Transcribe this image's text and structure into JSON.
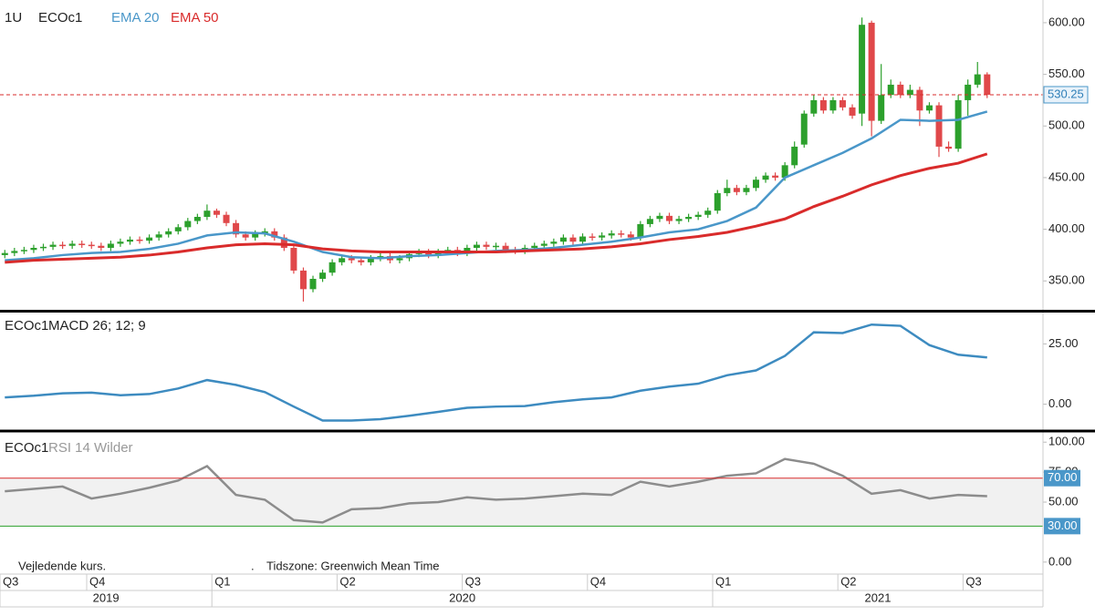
{
  "chart_data": [
    {
      "type": "candlestick",
      "interval": "1U",
      "symbol": "ECOc1",
      "up_color": "#2ca02c",
      "down_color": "#e0484a",
      "open": [
        375,
        377,
        379,
        380,
        382,
        383,
        385,
        384,
        386,
        385,
        384,
        382,
        386,
        388,
        390,
        389,
        392,
        395,
        398,
        402,
        408,
        412,
        418,
        414,
        406,
        395,
        392,
        396,
        398,
        392,
        382,
        360,
        342,
        352,
        358,
        368,
        372,
        370,
        368,
        372,
        374,
        370,
        372,
        376,
        378,
        375,
        378,
        380,
        377,
        382,
        385,
        383,
        384,
        380,
        379,
        382,
        384,
        386,
        388,
        392,
        388,
        393,
        392,
        394,
        396,
        395,
        392,
        405,
        410,
        413,
        408,
        410,
        412,
        414,
        418,
        435,
        440,
        436,
        440,
        448,
        452,
        450,
        462,
        482,
        512,
        525,
        515,
        525,
        518,
        512,
        600,
        505,
        530,
        540,
        530,
        535,
        515,
        520,
        480,
        478,
        525,
        540,
        550
      ],
      "high": [
        380,
        382,
        383,
        385,
        386,
        388,
        388,
        389,
        389,
        388,
        387,
        389,
        391,
        393,
        393,
        395,
        398,
        401,
        405,
        411,
        415,
        424,
        420,
        417,
        409,
        398,
        399,
        401,
        401,
        395,
        385,
        363,
        355,
        361,
        371,
        375,
        375,
        373,
        375,
        377,
        377,
        375,
        379,
        381,
        381,
        381,
        383,
        383,
        385,
        388,
        388,
        387,
        387,
        383,
        385,
        387,
        389,
        391,
        395,
        395,
        396,
        396,
        397,
        399,
        399,
        398,
        408,
        413,
        416,
        416,
        413,
        415,
        417,
        421,
        438,
        448,
        443,
        443,
        451,
        455,
        455,
        465,
        485,
        515,
        530,
        528,
        528,
        528,
        521,
        605,
        602,
        560,
        545,
        543,
        540,
        538,
        523,
        523,
        485,
        530,
        545,
        562,
        552
      ],
      "low": [
        372,
        374,
        376,
        377,
        379,
        380,
        381,
        381,
        382,
        381,
        379,
        379,
        383,
        385,
        386,
        386,
        389,
        392,
        395,
        399,
        405,
        409,
        411,
        403,
        392,
        389,
        389,
        393,
        389,
        379,
        357,
        330,
        339,
        349,
        355,
        365,
        367,
        365,
        365,
        369,
        367,
        367,
        369,
        373,
        372,
        372,
        375,
        374,
        374,
        379,
        380,
        380,
        377,
        376,
        376,
        379,
        381,
        383,
        385,
        385,
        385,
        389,
        389,
        391,
        392,
        389,
        389,
        402,
        407,
        405,
        405,
        407,
        409,
        411,
        415,
        432,
        433,
        433,
        437,
        445,
        447,
        447,
        459,
        479,
        509,
        512,
        512,
        515,
        507,
        500,
        490,
        502,
        527,
        527,
        527,
        500,
        512,
        470,
        475,
        475,
        510,
        537,
        527
      ],
      "close": [
        377,
        379,
        380,
        382,
        383,
        385,
        384,
        386,
        385,
        384,
        382,
        386,
        388,
        390,
        389,
        392,
        395,
        398,
        402,
        408,
        412,
        418,
        414,
        406,
        395,
        392,
        396,
        398,
        392,
        382,
        360,
        342,
        352,
        358,
        368,
        372,
        370,
        368,
        372,
        374,
        370,
        372,
        376,
        378,
        375,
        378,
        380,
        377,
        382,
        385,
        383,
        384,
        380,
        379,
        382,
        384,
        386,
        388,
        392,
        388,
        393,
        392,
        394,
        396,
        395,
        392,
        405,
        410,
        413,
        408,
        410,
        412,
        414,
        418,
        435,
        440,
        436,
        440,
        448,
        452,
        450,
        462,
        480,
        512,
        525,
        515,
        525,
        518,
        510,
        598,
        505,
        530,
        540,
        530,
        535,
        515,
        520,
        480,
        478,
        525,
        540,
        550,
        530.25
      ],
      "lines": [
        {
          "name": "EMA 20",
          "color": "#4a97c9",
          "x": [
            0,
            3,
            6,
            9,
            12,
            15,
            18,
            21,
            24,
            27,
            30,
            33,
            36,
            39,
            42,
            45,
            48,
            51,
            54,
            57,
            60,
            63,
            66,
            69,
            72,
            75,
            78,
            81,
            84,
            87,
            90,
            93,
            96,
            99,
            102
          ],
          "values": [
            370,
            372,
            375,
            377,
            378,
            381,
            386,
            394,
            397,
            396,
            388,
            378,
            373,
            372,
            374,
            375,
            377,
            379,
            380,
            382,
            385,
            388,
            392,
            397,
            400,
            408,
            421,
            450,
            462,
            474,
            488,
            506,
            505,
            506,
            514
          ]
        },
        {
          "name": "EMA 50",
          "color": "#d92b2b",
          "x": [
            0,
            3,
            6,
            9,
            12,
            15,
            18,
            21,
            24,
            27,
            30,
            33,
            36,
            39,
            42,
            45,
            48,
            51,
            54,
            57,
            60,
            63,
            66,
            69,
            72,
            75,
            78,
            81,
            84,
            87,
            90,
            93,
            96,
            99,
            102
          ],
          "values": [
            368,
            370,
            371,
            372,
            373,
            375,
            378,
            382,
            385,
            386,
            385,
            381,
            379,
            378,
            378,
            378,
            378,
            378,
            379,
            380,
            381,
            383,
            386,
            390,
            393,
            397,
            403,
            410,
            422,
            432,
            443,
            452,
            459,
            464,
            473
          ]
        }
      ],
      "last_price": 530.25,
      "last_price_color": "#d92b2b",
      "xlim": [
        -0.5,
        107.8
      ],
      "ylim": [
        322,
        622
      ],
      "yticks": [
        {
          "value": 350,
          "label": "350.00"
        },
        {
          "value": 400,
          "label": "400.00"
        },
        {
          "value": 450,
          "label": "450.00"
        },
        {
          "value": 500,
          "label": "500.00"
        },
        {
          "value": 550,
          "label": "550.00"
        },
        {
          "value": 600,
          "label": "600.00"
        }
      ]
    },
    {
      "type": "line",
      "symbol": "ECOc1",
      "title": "MACD 26; 12; 9",
      "series": [
        {
          "color": "#3d8bc0",
          "x": [
            0,
            3,
            6,
            9,
            12,
            15,
            18,
            21,
            24,
            27,
            30,
            33,
            36,
            39,
            42,
            45,
            48,
            51,
            54,
            57,
            60,
            63,
            66,
            69,
            72,
            75,
            78,
            81,
            84,
            87,
            90,
            93,
            96,
            99,
            102
          ],
          "values": [
            2.8,
            3.5,
            4.5,
            4.8,
            3.7,
            4.2,
            6.5,
            10,
            8,
            5,
            -1,
            -6.8,
            -6.8,
            -6.2,
            -4.8,
            -3.2,
            -1.5,
            -1,
            -0.8,
            0.8,
            2,
            2.8,
            5.6,
            7.3,
            8.5,
            12,
            14,
            20,
            29.8,
            29.5,
            33,
            32.5,
            24.5,
            20.5,
            19.4
          ]
        }
      ],
      "xlim": [
        -0.5,
        107.8
      ],
      "ylim": [
        -10,
        38
      ],
      "yticks": [
        {
          "value": 0,
          "label": "0.00"
        },
        {
          "value": 25,
          "label": "25.00"
        }
      ]
    },
    {
      "type": "line",
      "symbol": "ECOc1",
      "title": "RSI 14 Wilder",
      "series": [
        {
          "color": "#8c8c8c",
          "x": [
            0,
            3,
            6,
            9,
            12,
            15,
            18,
            21,
            24,
            27,
            30,
            33,
            36,
            39,
            42,
            45,
            48,
            51,
            54,
            57,
            60,
            63,
            66,
            69,
            72,
            75,
            78,
            81,
            84,
            87,
            90,
            93,
            96,
            99,
            102
          ],
          "values": [
            59,
            61,
            63,
            53,
            57,
            62,
            68,
            80,
            56,
            52,
            35,
            33,
            44,
            45,
            49,
            50,
            54,
            52,
            53,
            55,
            57,
            56,
            67,
            63,
            67,
            72,
            74,
            86,
            82,
            72,
            57,
            60,
            53,
            56,
            55
          ]
        }
      ],
      "levels": [
        {
          "value": 70,
          "label": "70.00",
          "color": "#d92b2b"
        },
        {
          "value": 30,
          "label": "30.00",
          "color": "#2ca02c"
        }
      ],
      "xlim": [
        -0.5,
        107.8
      ],
      "ylim": [
        -10,
        107
      ],
      "yticks": [
        {
          "value": 0,
          "label": "0.00"
        },
        {
          "value": 50,
          "label": "50.00"
        },
        {
          "value": 75,
          "label": "75.00"
        },
        {
          "value": 100,
          "label": "100.00"
        }
      ],
      "xticks": [
        {
          "value": -0.5,
          "label": "Q3"
        },
        {
          "value": 8.5,
          "label": "Q4"
        },
        {
          "value": 21.5,
          "label": "Q1"
        },
        {
          "value": 34.5,
          "label": "Q2"
        },
        {
          "value": 47.5,
          "label": "Q3"
        },
        {
          "value": 60.5,
          "label": "Q4"
        },
        {
          "value": 73.5,
          "label": "Q1"
        },
        {
          "value": 86.5,
          "label": "Q2"
        },
        {
          "value": 99.5,
          "label": "Q3"
        }
      ],
      "years": [
        {
          "value": -0.5,
          "label": "2019"
        },
        {
          "value": 21.5,
          "label": "2020"
        },
        {
          "value": 73.5,
          "label": "2021"
        }
      ]
    }
  ],
  "footer": {
    "note": "Vejledende kurs.",
    "dot": ".",
    "timezone": "Tidszone: Greenwich Mean Time"
  }
}
